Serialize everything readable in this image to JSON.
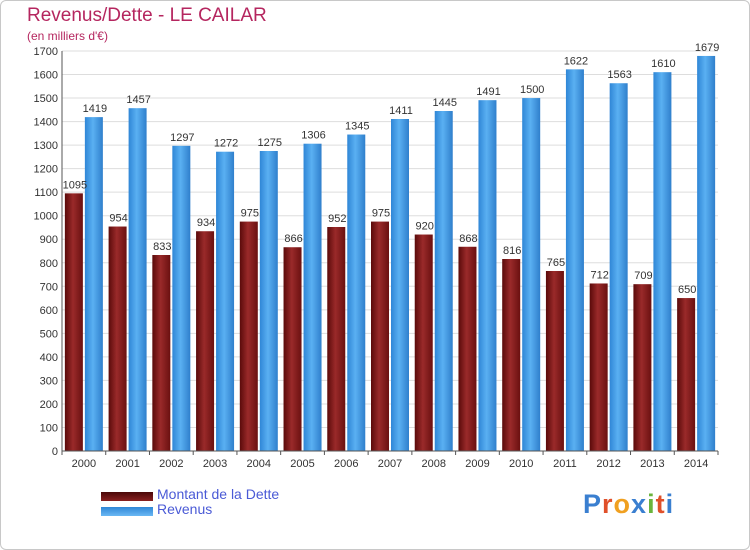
{
  "header": {
    "title": "Revenus/Dette - LE CAILAR",
    "subtitle": "(en milliers d'€)"
  },
  "legend": {
    "items": [
      {
        "label": "Montant de la Dette",
        "color": "#7a1414"
      },
      {
        "label": "Revenus",
        "color": "#3d9be9"
      }
    ]
  },
  "logo": {
    "text": "Proxiti",
    "colors": [
      "#3a7fd0",
      "#e0502a",
      "#f0a020",
      "#3a7fd0",
      "#6ab43c",
      "#e0502a",
      "#3a7fd0"
    ]
  },
  "chart_data": {
    "type": "bar",
    "title": "Revenus/Dette - LE CAILAR",
    "subtitle": "(en milliers d'€)",
    "categories": [
      "2000",
      "2001",
      "2002",
      "2003",
      "2004",
      "2005",
      "2006",
      "2007",
      "2008",
      "2009",
      "2010",
      "2011",
      "2012",
      "2013",
      "2014"
    ],
    "series": [
      {
        "name": "Montant de la Dette",
        "color": "#7a1414",
        "values": [
          1095,
          954,
          833,
          934,
          975,
          866,
          952,
          975,
          920,
          868,
          816,
          765,
          712,
          709,
          650
        ],
        "labels": [
          "1095",
          "954",
          "833",
          "934",
          "975",
          "866",
          "952",
          "975",
          "920",
          "868",
          "816",
          "765",
          "712",
          "709",
          "650"
        ]
      },
      {
        "name": "Revenus",
        "color": "#3d9be9",
        "values": [
          1419,
          1457,
          1297,
          1272,
          1275,
          1306,
          1345,
          1411,
          1445,
          1491,
          1500,
          1622,
          1563,
          1610,
          1679
        ],
        "labels": [
          "1419",
          "1457",
          "1297",
          "1272",
          "1275",
          "1306",
          "1345",
          "1411",
          "1445",
          "1491",
          "1500",
          "1622",
          "1563",
          "1610",
          "1679"
        ]
      }
    ],
    "ylim": [
      0,
      1700
    ],
    "yticks": [
      0,
      100,
      200,
      300,
      400,
      500,
      600,
      700,
      800,
      900,
      1000,
      1100,
      1200,
      1300,
      1400,
      1500,
      1600,
      1700
    ],
    "grid": true,
    "legend_position": "bottom-left"
  }
}
